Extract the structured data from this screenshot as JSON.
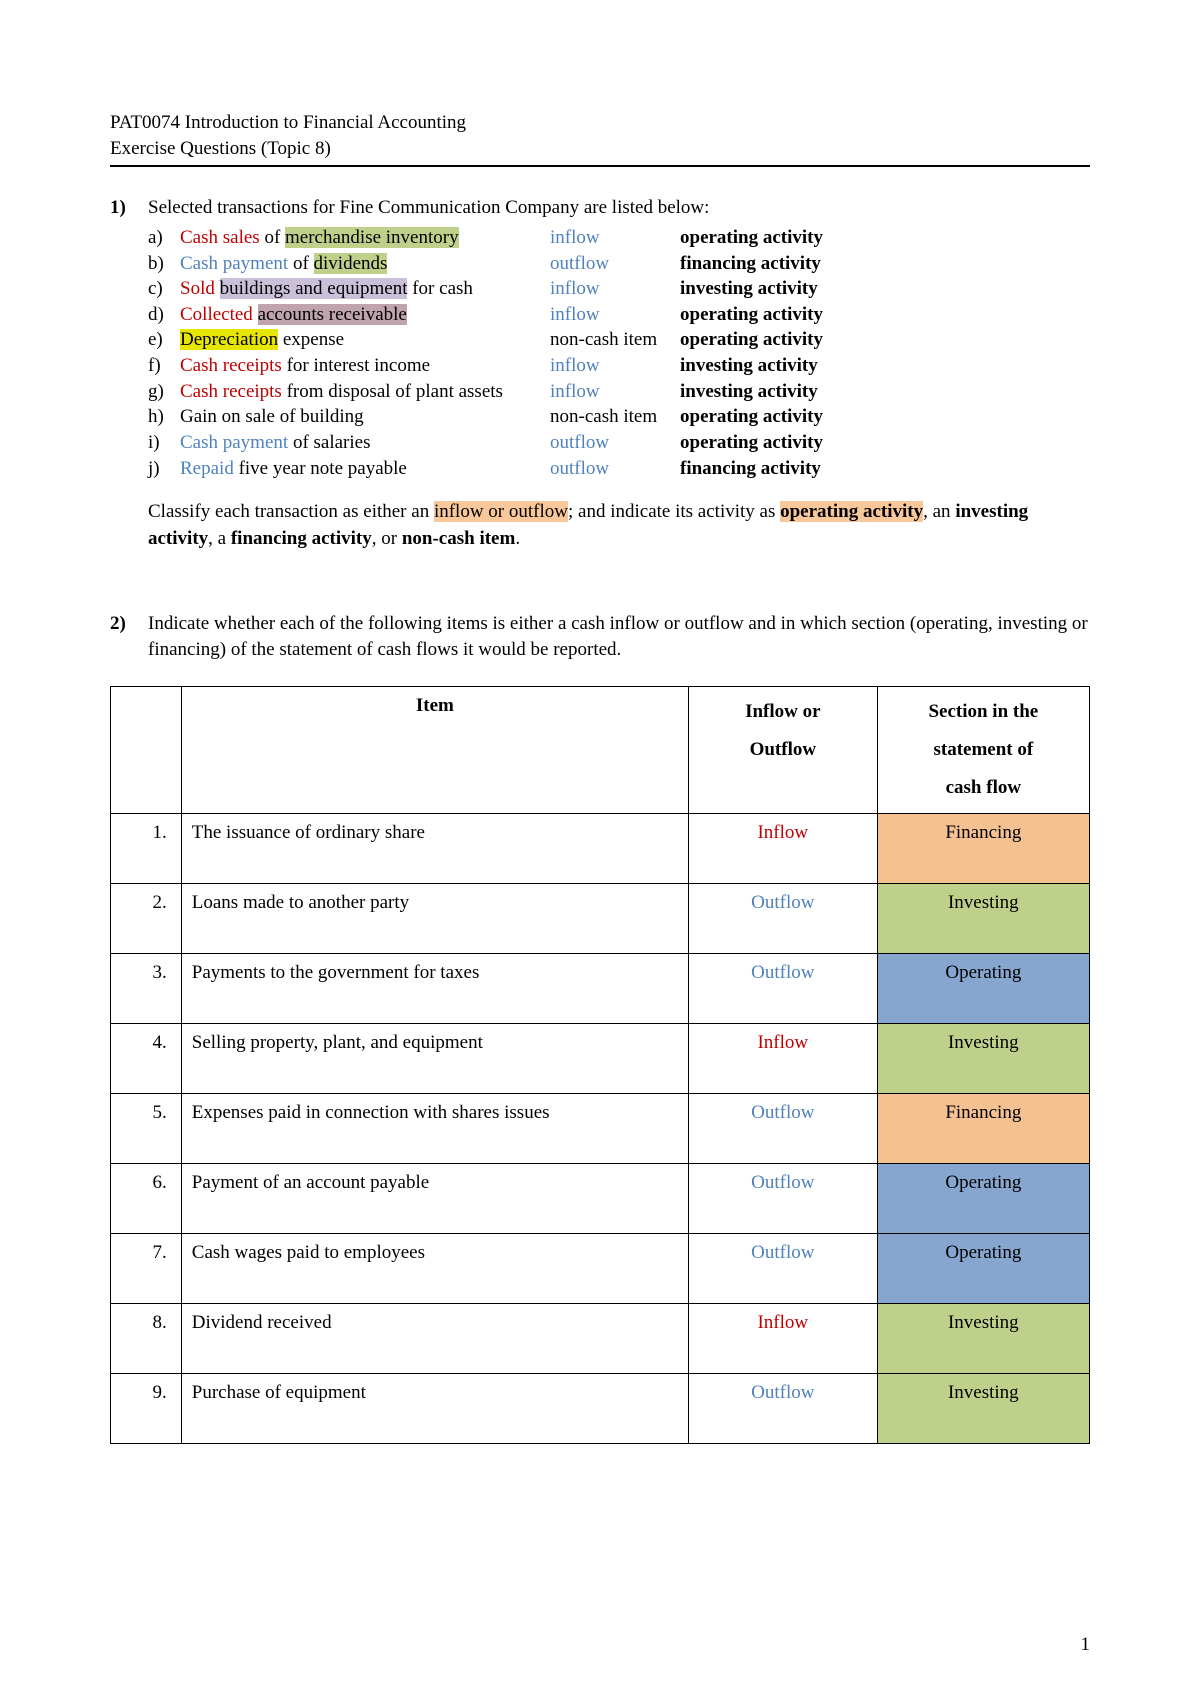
{
  "header": {
    "line1": "PAT0074 Introduction to Financial Accounting",
    "line2": "Exercise Questions (Topic 8)"
  },
  "q1": {
    "num": "1)",
    "intro": "Selected transactions for Fine Communication Company are listed below:",
    "items": [
      {
        "letter": "a)",
        "pre": "Cash sales",
        "pre_color": "red",
        "mid": "merchandise inventory",
        "mid_hl": "hl-green",
        "of": " of ",
        "post": "",
        "flow": "inflow",
        "flow_color": "blue",
        "activity": "operating activity"
      },
      {
        "letter": "b)",
        "pre": "Cash payment",
        "pre_color": "blue",
        "mid": "dividends",
        "mid_hl": "hl-green",
        "of": " of ",
        "post": "",
        "flow": "outflow",
        "flow_color": "blue",
        "activity": "financing activity"
      },
      {
        "letter": "c)",
        "pre": "Sold",
        "pre_color": "red",
        "mid": "buildings and equipment",
        "mid_hl": "hl-lav",
        "of": " ",
        "post": " for cash",
        "flow": "inflow",
        "flow_color": "blue",
        "activity": "investing activity"
      },
      {
        "letter": "d)",
        "pre": "Collected",
        "pre_color": "red",
        "mid": "accounts receivable",
        "mid_hl": "hl-plum",
        "of": " ",
        "post": "",
        "flow": "inflow",
        "flow_color": "blue",
        "activity": "operating activity"
      },
      {
        "letter": "e)",
        "pre": "Depreciation",
        "pre_color": "",
        "mid": "",
        "mid_hl": "",
        "of": "",
        "post": " expense",
        "pre_hl": "hl-yellow",
        "flow": "non-cash item",
        "flow_color": "",
        "activity": "operating activity"
      },
      {
        "letter": "f)",
        "pre": "Cash receipts",
        "pre_color": "red",
        "mid": "",
        "mid_hl": "",
        "of": "",
        "post": " for interest income",
        "flow": "inflow",
        "flow_color": "blue",
        "activity": "investing activity"
      },
      {
        "letter": "g)",
        "pre": "Cash receipts",
        "pre_color": "red",
        "mid": "",
        "mid_hl": "",
        "of": "",
        "post": " from disposal of plant assets",
        "flow": "inflow",
        "flow_color": "blue",
        "activity": "investing activity"
      },
      {
        "letter": "h)",
        "pre": "",
        "pre_color": "",
        "mid": "",
        "mid_hl": "",
        "of": "",
        "post": "Gain on sale of building",
        "flow": "non-cash item",
        "flow_color": "",
        "activity": "operating activity"
      },
      {
        "letter": "i)",
        "pre": "Cash payment",
        "pre_color": "blue",
        "mid": "",
        "mid_hl": "",
        "of": "",
        "post": " of salaries",
        "flow": "outflow",
        "flow_color": "blue",
        "activity": "operating activity"
      },
      {
        "letter": "j)",
        "pre": "Repaid",
        "pre_color": "blue",
        "mid": "",
        "mid_hl": "",
        "of": "",
        "post": " five year note payable",
        "flow": "outflow",
        "flow_color": "blue",
        "activity": "financing activity"
      }
    ],
    "instruction_parts": {
      "p1": "Classify each transaction as either an ",
      "hl1": "inflow or outflow",
      "p2": "; and indicate its activity as ",
      "hl2": "operating activity",
      "p3": ", an ",
      "b1": "investing activity",
      "p4": ", a ",
      "b2": "financing activity",
      "p5": ", or ",
      "b3": "non-cash item",
      "p6": "."
    }
  },
  "q2": {
    "num": "2)",
    "intro": "Indicate whether each of the following items is either a cash inflow or outflow and in which section (operating, investing or financing) of the statement of cash flows it would be reported.",
    "headers": {
      "item": "Item",
      "flow": "Inflow or\nOutflow",
      "section": "Section in the\nstatement of\ncash flow"
    },
    "rows": [
      {
        "n": "1.",
        "item": "The issuance of ordinary share",
        "flow": "Inflow",
        "flow_color": "red",
        "section": "Financing",
        "sec_class": "sec-fin"
      },
      {
        "n": "2.",
        "item": "Loans made to another party",
        "flow": "Outflow",
        "flow_color": "blue",
        "section": "Investing",
        "sec_class": "sec-inv"
      },
      {
        "n": "3.",
        "item": "Payments to the government for taxes",
        "flow": "Outflow",
        "flow_color": "blue",
        "section": "Operating",
        "sec_class": "sec-op"
      },
      {
        "n": "4.",
        "item": "Selling property, plant, and equipment",
        "flow": "Inflow",
        "flow_color": "red",
        "section": "Investing",
        "sec_class": "sec-inv"
      },
      {
        "n": "5.",
        "item": "Expenses paid in connection with shares issues",
        "flow": "Outflow",
        "flow_color": "blue",
        "section": "Financing",
        "sec_class": "sec-fin"
      },
      {
        "n": "6.",
        "item": "Payment of an account payable",
        "flow": "Outflow",
        "flow_color": "blue",
        "section": "Operating",
        "sec_class": "sec-op"
      },
      {
        "n": "7.",
        "item": "Cash wages paid to employees",
        "flow": "Outflow",
        "flow_color": "blue",
        "section": "Operating",
        "sec_class": "sec-op"
      },
      {
        "n": "8.",
        "item": "Dividend received",
        "flow": "Inflow",
        "flow_color": "red",
        "section": "Investing",
        "sec_class": "sec-inv"
      },
      {
        "n": "9.",
        "item": "Purchase of equipment",
        "flow": "Outflow",
        "flow_color": "blue",
        "section": "Investing",
        "sec_class": "sec-inv"
      }
    ]
  },
  "page_number": "1",
  "colors": {
    "red": "#c00000",
    "blue": "#4f81bd",
    "hl_green": "#bfd08b",
    "hl_lav": "#cbc0d9",
    "hl_yellow": "#e6e600",
    "hl_plum": "#bfa4ae",
    "hl_orange": "#f9c89a",
    "sec_fin": "#f5c190",
    "sec_inv": "#bfd08b",
    "sec_op": "#86a6cf"
  }
}
